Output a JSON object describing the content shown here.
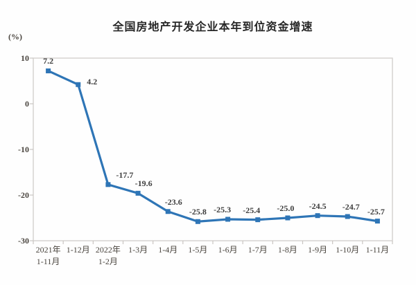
{
  "page": {
    "background": "#ffffff"
  },
  "chart_data": {
    "type": "line",
    "title": "全国房地产开发企业本年到位资金增速",
    "unit_label": "(%)",
    "categories": [
      [
        "2021年",
        "1-11月"
      ],
      [
        "1-12月"
      ],
      [
        "2022年",
        "1-2月"
      ],
      [
        "1-3月"
      ],
      [
        "1-4月"
      ],
      [
        "1-5月"
      ],
      [
        "1-6月"
      ],
      [
        "1-7月"
      ],
      [
        "1-8月"
      ],
      [
        "1-9月"
      ],
      [
        "1-10月"
      ],
      [
        "1-11月"
      ]
    ],
    "values": [
      7.2,
      4.2,
      -17.7,
      -19.6,
      -23.6,
      -25.8,
      -25.3,
      -25.4,
      -25.0,
      -24.5,
      -24.7,
      -25.7
    ],
    "data_labels": [
      "7.2",
      "4.2",
      "-17.7",
      "-19.6",
      "-23.6",
      "-25.8",
      "-25.3",
      "-25.4",
      "-25.0",
      "-24.5",
      "-24.7",
      "-25.7"
    ],
    "y_ticks": [
      10,
      0,
      -10,
      -20,
      -30
    ],
    "ylim": [
      -30,
      10
    ],
    "xlabel": "",
    "ylabel": "(%)",
    "grid": false,
    "legend": "none",
    "line_color": "#2E75B6",
    "marker_color": "#2E75B6",
    "marker_shape": "square",
    "data_label_color": "#3d3d3d",
    "axis_border_color": "#d3d0cd",
    "tick_color": "#c9c5c1",
    "tick_label_color": "#4a453f",
    "label_dx": [
      0,
      20,
      24,
      8,
      8,
      0,
      -8,
      -9,
      -3,
      0,
      5,
      -2
    ],
    "label_dy": [
      0,
      10,
      0,
      0,
      0,
      0,
      0,
      0,
      0,
      0,
      0,
      0
    ]
  }
}
